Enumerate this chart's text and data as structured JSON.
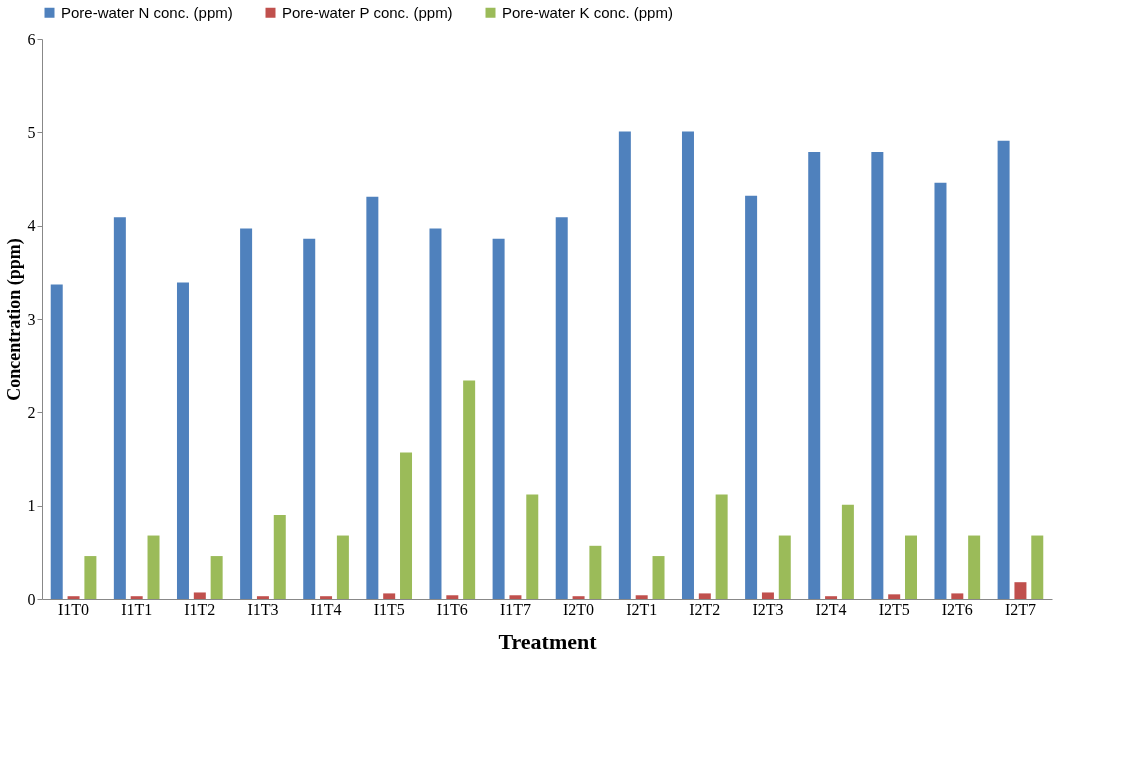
{
  "chart_data": {
    "type": "bar",
    "xlabel": "Treatment",
    "ylabel": "Concentration (ppm)",
    "categories": [
      "I1T0",
      "I1T1",
      "I1T2",
      "I1T3",
      "I1T4",
      "I1T5",
      "I1T6",
      "I1T7",
      "I2T0",
      "I2T1",
      "I2T2",
      "I2T3",
      "I2T4",
      "I2T5",
      "I2T6",
      "I2T7"
    ],
    "series": [
      {
        "name": "Pore-water N conc. (ppm)",
        "color": "#4f81bd",
        "values": [
          3.37,
          4.09,
          3.39,
          3.97,
          3.86,
          4.31,
          3.97,
          3.86,
          4.09,
          5.01,
          5.01,
          4.32,
          4.79,
          4.79,
          4.46,
          4.91
        ]
      },
      {
        "name": "Pore-water P conc. (ppm)",
        "color": "#c0504d",
        "values": [
          0.03,
          0.03,
          0.07,
          0.03,
          0.03,
          0.06,
          0.04,
          0.04,
          0.03,
          0.04,
          0.06,
          0.07,
          0.03,
          0.05,
          0.06,
          0.18
        ]
      },
      {
        "name": "Pore-water K conc. (ppm)",
        "color": "#9bbb59",
        "values": [
          0.46,
          0.68,
          0.46,
          0.9,
          0.68,
          1.57,
          2.34,
          1.12,
          0.57,
          0.46,
          1.12,
          0.68,
          1.01,
          0.68,
          0.68,
          0.68
        ]
      }
    ],
    "ylim": [
      0,
      6
    ],
    "yticks": [
      0,
      1,
      2,
      3,
      4,
      5,
      6
    ],
    "grid": false,
    "legend": "top"
  }
}
